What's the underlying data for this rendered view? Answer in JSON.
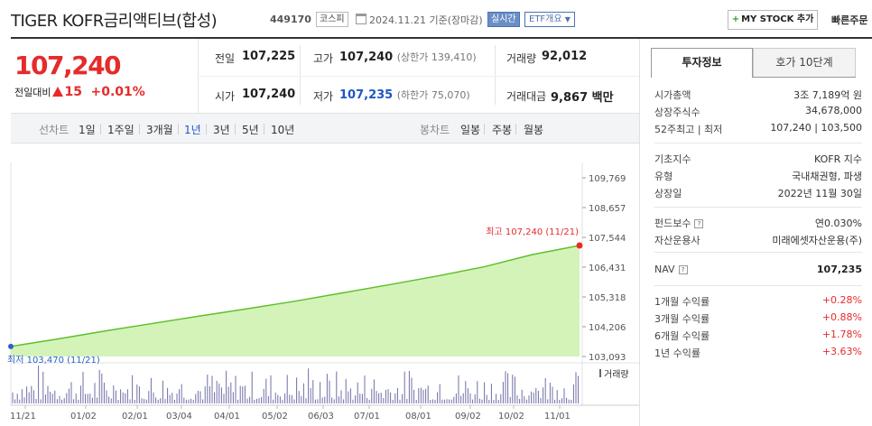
{
  "header": {
    "name": "TIGER KOFR금리액티브(합성)",
    "code": "449170",
    "market": "코스피",
    "date": "2024.11.21 기준(장마감)",
    "realtime": "실시간",
    "etf_overview": "ETF개요",
    "my_stock": "MY STOCK 추가",
    "quick_order": "빠른주문"
  },
  "price": {
    "current": "107,240",
    "change_label": "전일대비",
    "change": "15",
    "change_pct": "+0.01%"
  },
  "quote": {
    "prev_label": "전일",
    "prev": "107,225",
    "high_label": "고가",
    "high": "107,240",
    "upper_limit": "(상한가 139,410)",
    "volume_label": "거래량",
    "volume": "92,012",
    "open_label": "시가",
    "open": "107,240",
    "low_label": "저가",
    "low": "107,235",
    "lower_limit": "(하한가 75,070)",
    "amount_label": "거래대금",
    "amount": "9,867",
    "amount_unit": "백만"
  },
  "periods": {
    "line_label": "선차트",
    "line_items": [
      "1일",
      "1주일",
      "3개월",
      "1년",
      "3년",
      "5년",
      "10년"
    ],
    "active": "1년",
    "candle_label": "봉차트",
    "candle_items": [
      "일봉",
      "주봉",
      "월봉"
    ]
  },
  "chart_data": {
    "type": "area",
    "y_ticks": [
      "109,769",
      "108,657",
      "107,544",
      "106,431",
      "105,318",
      "104,206",
      "103,093"
    ],
    "ylim": [
      103093,
      109769
    ],
    "x_ticks": [
      "11/21",
      "01/02",
      "02/01",
      "03/04",
      "04/01",
      "05/02",
      "06/03",
      "07/01",
      "08/01",
      "09/02",
      "10/02",
      "11/01"
    ],
    "series": [
      {
        "x": [
          "11/21",
          "12/21",
          "01/22",
          "02/22",
          "03/22",
          "04/22",
          "05/22",
          "06/22",
          "07/22",
          "08/22",
          "09/22",
          "10/22",
          "11/21"
        ],
        "values": [
          103470,
          103750,
          104050,
          104330,
          104610,
          104880,
          105160,
          105470,
          105780,
          106100,
          106450,
          106900,
          107240
        ]
      }
    ],
    "high_label": "최고 107,240 (11/21)",
    "low_label": "최저 103,470 (11/21)",
    "volume_label": "거래량",
    "colors": {
      "line": "#5fbf2a",
      "fill": "#c9f0a7",
      "high": "#e52b2b",
      "low": "#2a63c9",
      "volume": "#6f6fa8"
    }
  },
  "info": {
    "tab_invest": "투자정보",
    "tab_hoga": "호가 10단계",
    "rows1": [
      {
        "k": "시가총액",
        "v": "3조 7,189억 원"
      },
      {
        "k": "상장주식수",
        "v": "34,678,000"
      },
      {
        "k": "52주최고 | 최저",
        "v": "107,240 | 103,500"
      }
    ],
    "rows2": [
      {
        "k": "기초지수",
        "v": "KOFR 지수"
      },
      {
        "k": "유형",
        "v": "국내채권형, 파생"
      },
      {
        "k": "상장일",
        "v": "2022년 11월 30일"
      }
    ],
    "rows3": [
      {
        "k": "펀드보수",
        "v": "연0.030%"
      },
      {
        "k": "자산운용사",
        "v": "미래에셋자산운용(주)"
      }
    ],
    "nav_label": "NAV",
    "nav": "107,235",
    "returns": [
      {
        "k": "1개월 수익률",
        "v": "+0.28%"
      },
      {
        "k": "3개월 수익률",
        "v": "+0.88%"
      },
      {
        "k": "6개월 수익률",
        "v": "+1.78%"
      },
      {
        "k": "1년 수익률",
        "v": "+3.63%"
      }
    ]
  }
}
